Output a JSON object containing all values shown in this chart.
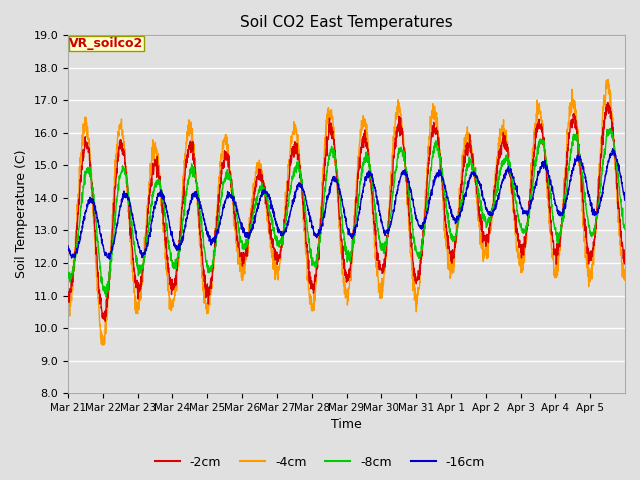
{
  "title": "Soil CO2 East Temperatures",
  "xlabel": "Time",
  "ylabel": "Soil Temperature (C)",
  "ylim": [
    8.0,
    19.0
  ],
  "yticks": [
    8.0,
    9.0,
    10.0,
    11.0,
    12.0,
    13.0,
    14.0,
    15.0,
    16.0,
    17.0,
    18.0,
    19.0
  ],
  "x_tick_labels": [
    "Mar 21",
    "Mar 22",
    "Mar 23",
    "Mar 24",
    "Mar 25",
    "Mar 26",
    "Mar 27",
    "Mar 28",
    "Mar 29",
    "Mar 30",
    "Mar 31",
    "Apr 1",
    "Apr 2",
    "Apr 3",
    "Apr 4",
    "Apr 5"
  ],
  "legend_label": "VR_soilco2",
  "series": {
    "-2cm": {
      "color": "#dd0000"
    },
    "-4cm": {
      "color": "#ff9900"
    },
    "-8cm": {
      "color": "#00cc00"
    },
    "-16cm": {
      "color": "#0000cc"
    }
  },
  "bg_color": "#e0e0e0",
  "plot_bg_color": "#e0e0e0",
  "grid_color": "#ffffff"
}
